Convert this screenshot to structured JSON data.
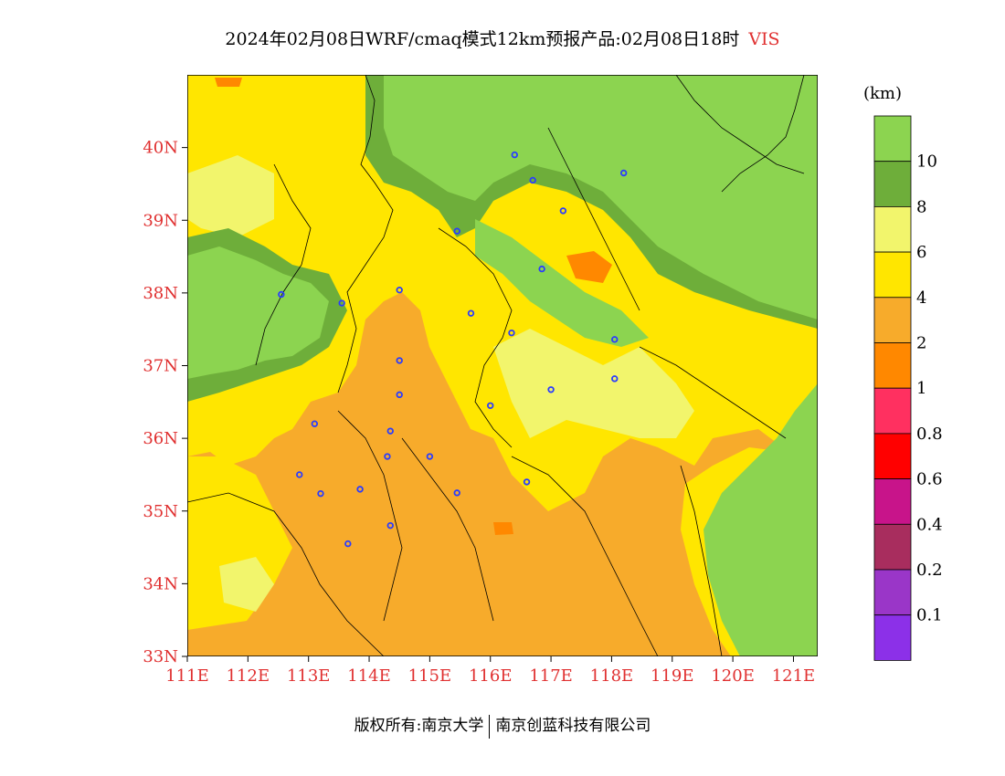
{
  "title": {
    "main": "2024年02月08日WRF/cmaq模式12km预报产品:02月08日18时",
    "variable": "VIS"
  },
  "map": {
    "lon_range": [
      111,
      121.4
    ],
    "lat_range": [
      33,
      41
    ],
    "lat_ticks": [
      "33N",
      "34N",
      "35N",
      "36N",
      "37N",
      "38N",
      "39N",
      "40N"
    ],
    "lon_ticks": [
      "111E",
      "112E",
      "113E",
      "114E",
      "115E",
      "116E",
      "117E",
      "118E",
      "119E",
      "120E",
      "121E"
    ],
    "city_markers": [
      {
        "lon": 116.4,
        "lat": 39.9
      },
      {
        "lon": 116.7,
        "lat": 39.55
      },
      {
        "lon": 118.2,
        "lat": 39.65
      },
      {
        "lon": 117.2,
        "lat": 39.13
      },
      {
        "lon": 115.45,
        "lat": 38.85
      },
      {
        "lon": 116.85,
        "lat": 38.33
      },
      {
        "lon": 112.55,
        "lat": 37.98
      },
      {
        "lon": 113.55,
        "lat": 37.86
      },
      {
        "lon": 114.5,
        "lat": 38.04
      },
      {
        "lon": 115.68,
        "lat": 37.72
      },
      {
        "lon": 116.35,
        "lat": 37.45
      },
      {
        "lon": 118.05,
        "lat": 37.36
      },
      {
        "lon": 114.5,
        "lat": 37.07
      },
      {
        "lon": 118.05,
        "lat": 36.82
      },
      {
        "lon": 114.5,
        "lat": 36.6
      },
      {
        "lon": 117.0,
        "lat": 36.67
      },
      {
        "lon": 116.0,
        "lat": 36.45
      },
      {
        "lon": 113.1,
        "lat": 36.2
      },
      {
        "lon": 114.35,
        "lat": 36.1
      },
      {
        "lon": 114.3,
        "lat": 35.75
      },
      {
        "lon": 115.0,
        "lat": 35.75
      },
      {
        "lon": 112.85,
        "lat": 35.5
      },
      {
        "lon": 113.2,
        "lat": 35.24
      },
      {
        "lon": 113.85,
        "lat": 35.3
      },
      {
        "lon": 115.45,
        "lat": 35.25
      },
      {
        "lon": 116.6,
        "lat": 35.4
      },
      {
        "lon": 114.35,
        "lat": 34.8
      },
      {
        "lon": 113.65,
        "lat": 34.55
      }
    ]
  },
  "colorbar": {
    "unit": "(km)",
    "colors": [
      "#8CD450",
      "#6EAE3A",
      "#F2F56C",
      "#FFE600",
      "#F7AB2B",
      "#FF8800",
      "#FF3060",
      "#FF0000",
      "#C8148A",
      "#A82D5E",
      "#9A36C8",
      "#8C30E8"
    ],
    "labels": [
      "10",
      "8",
      "6",
      "4",
      "2",
      "1",
      "0.8",
      "0.6",
      "0.4",
      "0.2",
      "0.1"
    ]
  },
  "footer": {
    "left": "版权所有:南京大学",
    "right": "南京创蓝科技有限公司"
  }
}
